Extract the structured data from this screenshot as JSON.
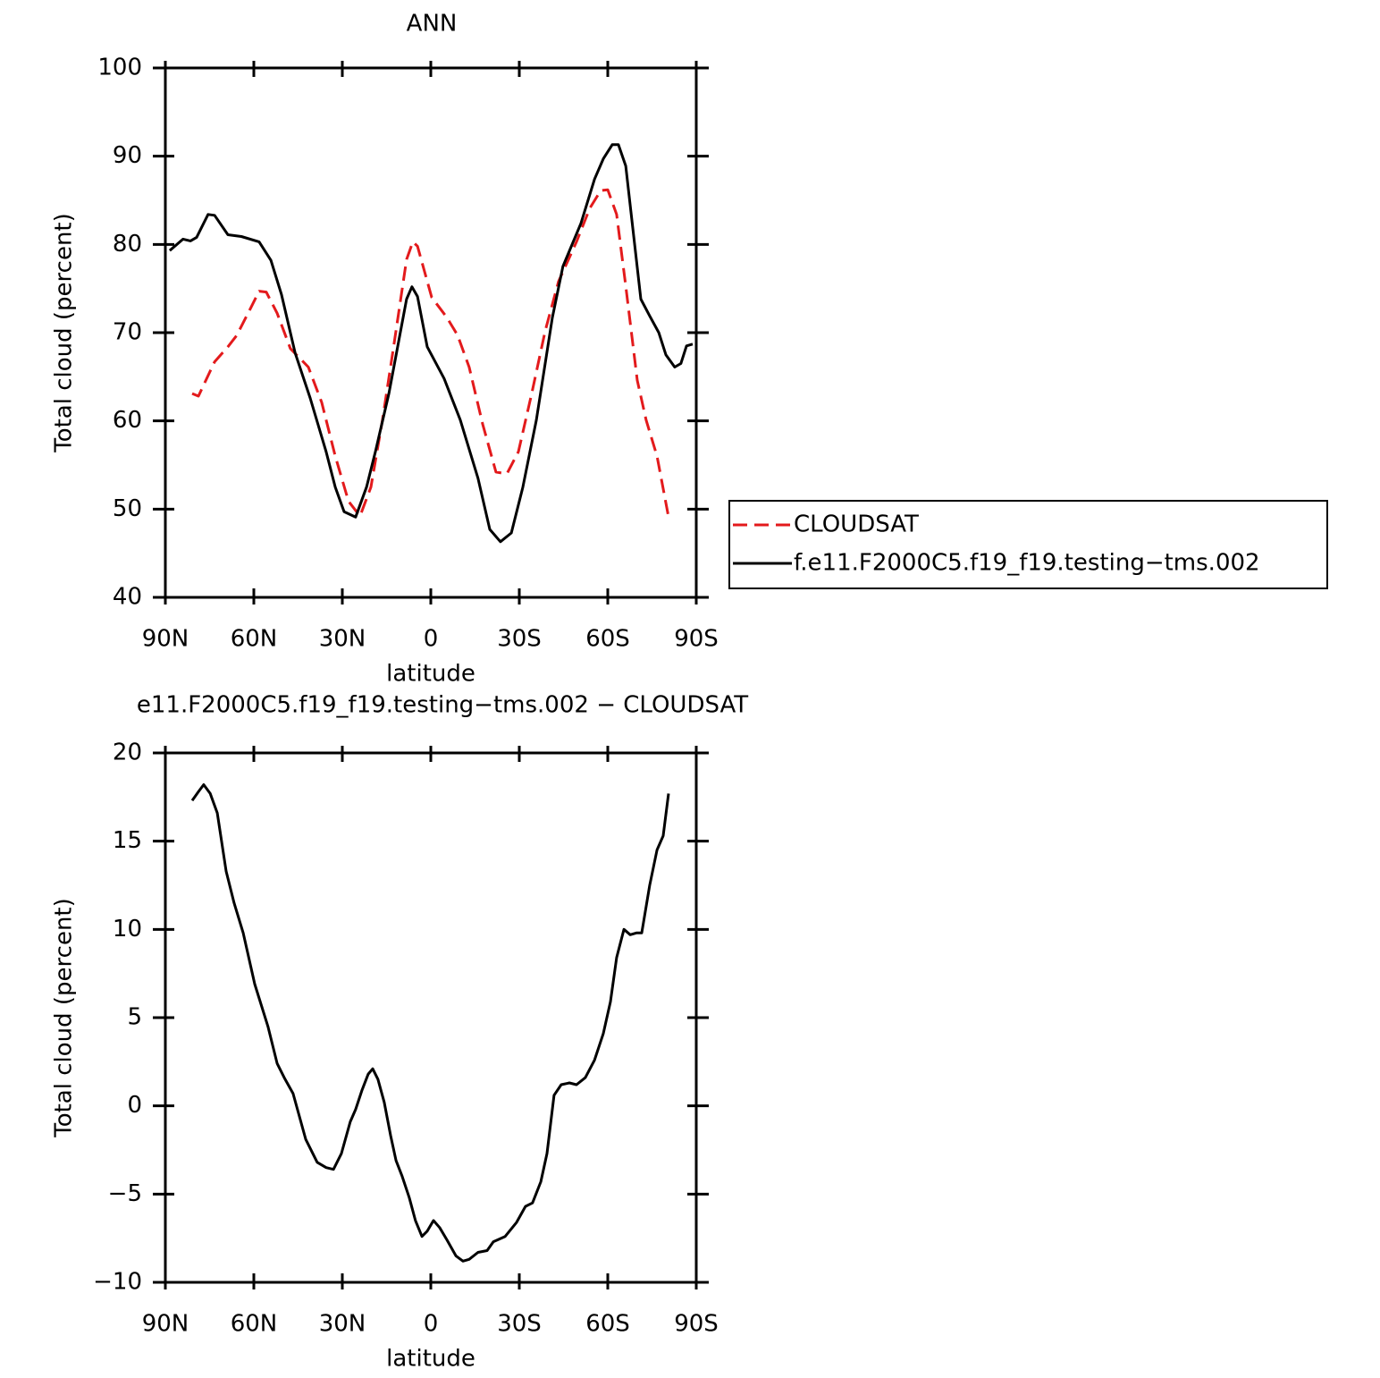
{
  "chart_data": [
    {
      "type": "line",
      "title": "ANN",
      "xlabel": "latitude",
      "ylabel": "Total cloud (percent)",
      "xlim": [
        90,
        -90
      ],
      "ylim": [
        40,
        100
      ],
      "xticks": [
        {
          "value": 90,
          "label": "90N"
        },
        {
          "value": 60,
          "label": "60N"
        },
        {
          "value": 30,
          "label": "30N"
        },
        0,
        {
          "value": -30,
          "label": "30S"
        },
        {
          "value": -60,
          "label": "60S"
        },
        {
          "value": -90,
          "label": "90S"
        }
      ],
      "yticks": [
        40,
        50,
        60,
        70,
        80,
        90,
        100
      ],
      "legend": "right",
      "series": [
        {
          "name": "CLOUDSAT",
          "color": "#e31a1c",
          "dashed": true,
          "x": [
            80.9,
            78.8,
            73.3,
            68.8,
            65.8,
            61.2,
            58.2,
            55.8,
            52.1,
            47.6,
            41.5,
            37,
            32.4,
            27.9,
            24,
            20.3,
            16.4,
            12.7,
            8.2,
            6.1,
            4.5,
            -0.3,
            -5.5,
            -9.1,
            -13,
            -17.6,
            -22.1,
            -25.8,
            -29.7,
            -34.2,
            -38.8,
            -43.3,
            -49.4,
            -53.9,
            -57.6,
            -60,
            -63,
            -66.1,
            -70,
            -73,
            -76.7,
            -80.6
          ],
          "values": [
            63.1,
            62.8,
            66.7,
            68.4,
            69.7,
            72.7,
            74.7,
            74.6,
            72.2,
            68.2,
            66.1,
            62.1,
            56.0,
            50.9,
            49.2,
            52.5,
            60.1,
            68.2,
            78.3,
            80.3,
            79.8,
            74.0,
            71.7,
            69.7,
            66.1,
            59.6,
            54.2,
            54.0,
            56.5,
            63.1,
            70.2,
            75.8,
            80.3,
            84.1,
            86.1,
            86.2,
            83.4,
            75.3,
            64.6,
            60.1,
            56.0,
            49.1
          ]
        },
        {
          "name": "f.e11.F2000C5.f19_f19.testing−tms.002",
          "color": "#000000",
          "dashed": false,
          "x": [
            88.5,
            84,
            81.5,
            79.4,
            75.5,
            73.3,
            68.8,
            64.2,
            58.2,
            54.2,
            50.6,
            46,
            40.9,
            35.5,
            32.4,
            29.4,
            25.5,
            21.8,
            18.8,
            14.2,
            8.2,
            6.4,
            4.5,
            1.2,
            -4.5,
            -10,
            -16,
            -20,
            -23.6,
            -27.3,
            -31.2,
            -35.8,
            -41.2,
            -44.8,
            -50.9,
            -55.5,
            -58.5,
            -61.5,
            -63.6,
            -66.1,
            -71.2,
            -74.2,
            -77.3,
            -79.7,
            -82.7,
            -84.8,
            -86.7,
            -88.8
          ],
          "values": [
            79.3,
            80.6,
            80.4,
            80.8,
            83.4,
            83.3,
            81.1,
            80.9,
            80.3,
            78.2,
            74.3,
            67.7,
            62.6,
            56.5,
            52.5,
            49.7,
            49.1,
            52.5,
            56.5,
            63.1,
            73.8,
            75.2,
            74.1,
            68.4,
            64.8,
            60.1,
            53.5,
            47.7,
            46.3,
            47.3,
            52.5,
            60.1,
            71.7,
            77.5,
            82.4,
            87.4,
            89.7,
            91.3,
            91.3,
            88.9,
            73.8,
            71.9,
            70.0,
            67.5,
            66.1,
            66.5,
            68.5,
            68.7
          ]
        }
      ]
    },
    {
      "type": "line",
      "title": "e11.F2000C5.f19_f19.testing−tms.002 − CLOUDSAT",
      "xlabel": "latitude",
      "ylabel": "Total cloud (percent)",
      "xlim": [
        90,
        -90
      ],
      "ylim": [
        -10,
        20
      ],
      "xticks": [
        {
          "value": 90,
          "label": "90N"
        },
        {
          "value": 60,
          "label": "60N"
        },
        {
          "value": 30,
          "label": "30N"
        },
        0,
        {
          "value": -30,
          "label": "30S"
        },
        {
          "value": -60,
          "label": "60S"
        },
        {
          "value": -90,
          "label": "90S"
        }
      ],
      "yticks": [
        {
          "value": -10,
          "label": "−10"
        },
        {
          "value": -5,
          "label": "−5"
        },
        0,
        5,
        10,
        15,
        20
      ],
      "series": [
        {
          "color": "#000000",
          "dashed": false,
          "x": [
            80.9,
            78.8,
            77,
            74.8,
            72.4,
            69.4,
            66.7,
            63.6,
            59.7,
            55.2,
            52.1,
            49.7,
            46.7,
            42.4,
            38.5,
            35.5,
            33,
            30.3,
            27.3,
            25.5,
            23.3,
            21.2,
            19.7,
            17.9,
            15.8,
            13.6,
            11.8,
            9.7,
            7.3,
            5.2,
            3,
            1.2,
            -0.9,
            -3,
            -5.5,
            -8.5,
            -10.9,
            -13,
            -16,
            -19.1,
            -21.2,
            -25.2,
            -29.1,
            -32.1,
            -34.5,
            -37.3,
            -39.4,
            -41.8,
            -44.2,
            -47,
            -49.4,
            -52.4,
            -55.5,
            -58.5,
            -60.9,
            -63,
            -65.5,
            -67.6,
            -69.7,
            -71.5,
            -74.2,
            -76.7,
            -78.8,
            -80.6
          ],
          "values": [
            17.3,
            17.8,
            18.2,
            17.7,
            16.6,
            13.3,
            11.5,
            9.8,
            6.9,
            4.5,
            2.4,
            1.6,
            0.7,
            -1.9,
            -3.2,
            -3.5,
            -3.6,
            -2.7,
            -0.9,
            -0.2,
            0.9,
            1.8,
            2.1,
            1.5,
            0.2,
            -1.7,
            -3.1,
            -4.0,
            -5.2,
            -6.5,
            -7.4,
            -7.1,
            -6.5,
            -6.9,
            -7.6,
            -8.5,
            -8.8,
            -8.7,
            -8.3,
            -8.2,
            -7.7,
            -7.4,
            -6.6,
            -5.7,
            -5.5,
            -4.3,
            -2.7,
            0.6,
            1.2,
            1.3,
            1.2,
            1.6,
            2.6,
            4.1,
            5.9,
            8.4,
            10.0,
            9.7,
            9.8,
            9.8,
            12.5,
            14.5,
            15.3,
            17.7
          ]
        }
      ]
    }
  ]
}
